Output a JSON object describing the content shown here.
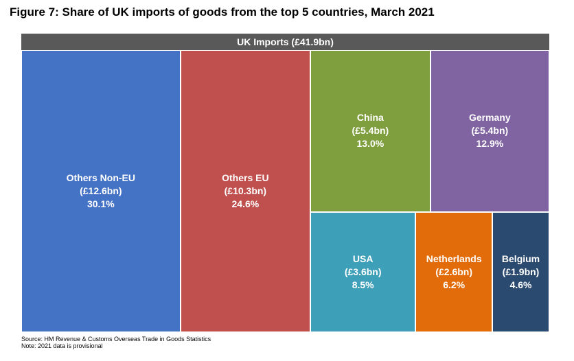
{
  "title": "Figure 7: Share of UK imports of goods from the top 5 countries, March 2021",
  "banner": "UK Imports (£41.9bn)",
  "source_lines": [
    "Source: HM Revenue & Customs Overseas Trade in Goods Statistics",
    "Note: 2021 data is provisional"
  ],
  "chart_data": {
    "type": "treemap",
    "title": "Figure 7: Share of UK imports of goods from the top 5 countries, March 2021",
    "total_label": "UK Imports (£41.9bn)",
    "total_bn": 41.9,
    "items": [
      {
        "name": "Others Non-EU",
        "value_bn": 12.6,
        "value_label": "(£12.6bn)",
        "share_pct": 30.1,
        "share_label": "30.1%",
        "color": "#4472c4"
      },
      {
        "name": "Others EU",
        "value_bn": 10.3,
        "value_label": "(£10.3bn)",
        "share_pct": 24.6,
        "share_label": "24.6%",
        "color": "#c0504d"
      },
      {
        "name": "China",
        "value_bn": 5.4,
        "value_label": "(£5.4bn)",
        "share_pct": 13.0,
        "share_label": "13.0%",
        "color": "#7f9f3e"
      },
      {
        "name": "Germany",
        "value_bn": 5.4,
        "value_label": "(£5.4bn)",
        "share_pct": 12.9,
        "share_label": "12.9%",
        "color": "#8064a2"
      },
      {
        "name": "USA",
        "value_bn": 3.6,
        "value_label": "(£3.6bn)",
        "share_pct": 8.5,
        "share_label": "8.5%",
        "color": "#3e9fb9"
      },
      {
        "name": "Netherlands",
        "value_bn": 2.6,
        "value_label": "(£2.6bn)",
        "share_pct": 6.2,
        "share_label": "6.2%",
        "color": "#e36c0a"
      },
      {
        "name": "Belgium",
        "value_bn": 1.9,
        "value_label": "(£1.9bn)",
        "share_pct": 4.6,
        "share_label": "4.6%",
        "color": "#2b4a6f"
      }
    ]
  }
}
